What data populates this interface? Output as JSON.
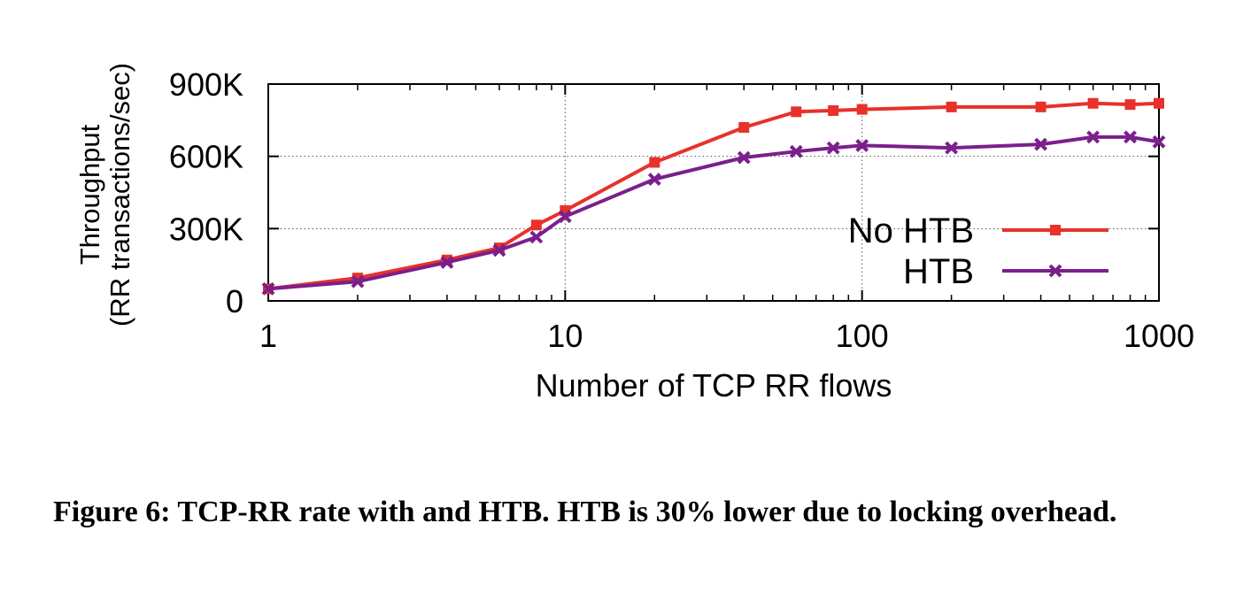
{
  "chart_data": {
    "type": "line",
    "xlabel": "Number of TCP RR flows",
    "ylabel_line1": "Throughput",
    "ylabel_line2": "(RR transactions/sec)",
    "x_scale": "log",
    "xlim": [
      1,
      1000
    ],
    "ylim": [
      0,
      900000
    ],
    "x_ticks": [
      1,
      10,
      100,
      1000
    ],
    "x_tick_labels": [
      "1",
      "10",
      "100",
      "1000"
    ],
    "y_ticks": [
      0,
      300000,
      600000,
      900000
    ],
    "y_tick_labels": [
      "0",
      "300K",
      "600K",
      "900K"
    ],
    "grid": true,
    "legend_position": "bottom-right",
    "series": [
      {
        "name": "No HTB",
        "color": "#e8312a",
        "marker": "square",
        "x": [
          1,
          2,
          4,
          6,
          8,
          10,
          20,
          40,
          60,
          80,
          100,
          200,
          400,
          600,
          800,
          1000
        ],
        "y": [
          50000,
          95000,
          170000,
          220000,
          315000,
          375000,
          575000,
          720000,
          785000,
          790000,
          795000,
          805000,
          805000,
          820000,
          815000,
          820000
        ]
      },
      {
        "name": "HTB",
        "color": "#7b1f8c",
        "marker": "cross",
        "x": [
          1,
          2,
          4,
          6,
          8,
          10,
          20,
          40,
          60,
          80,
          100,
          200,
          400,
          600,
          800,
          1000
        ],
        "y": [
          50000,
          80000,
          160000,
          210000,
          265000,
          350000,
          505000,
          595000,
          620000,
          635000,
          645000,
          635000,
          650000,
          680000,
          680000,
          660000
        ]
      }
    ]
  },
  "caption": "Figure 6: TCP-RR rate with and HTB. HTB is 30% lower due to locking overhead."
}
